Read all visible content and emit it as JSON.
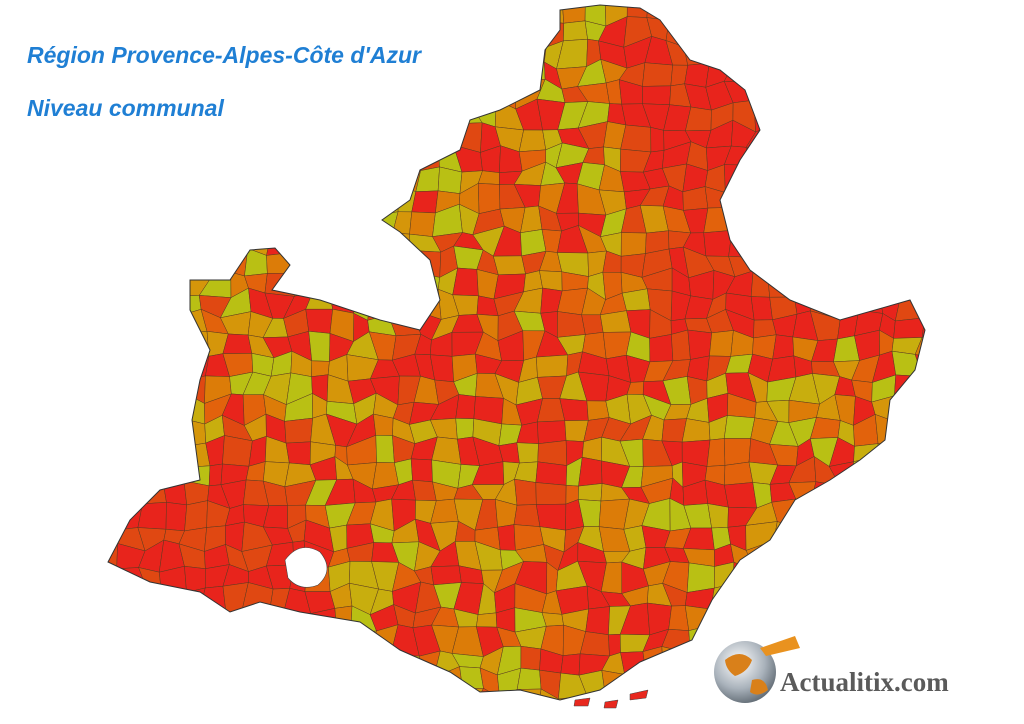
{
  "header": {
    "title": "Région Provence-Alpes-Côte d'Azur",
    "subtitle": "Niveau communal"
  },
  "logo": {
    "text": "Actualitix.com"
  }
}
